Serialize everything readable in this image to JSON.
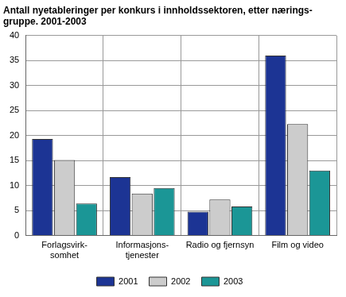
{
  "chart_data": {
    "type": "bar",
    "title": [
      "Antall nyetableringer per konkurs i innholdssektoren, etter nærings-",
      "gruppe. 2001-2003"
    ],
    "categories": [
      [
        "Forlagsvirk-",
        "somhet"
      ],
      [
        "Informasjons-",
        "tjenester"
      ],
      [
        "Radio og fjernsyn"
      ],
      [
        "Film og video"
      ]
    ],
    "series": [
      {
        "name": "2001",
        "color": "#1c3494",
        "values": [
          19.3,
          11.7,
          4.8,
          36.0
        ]
      },
      {
        "name": "2002",
        "color": "#cccccc",
        "values": [
          15.1,
          8.4,
          7.2,
          22.3
        ]
      },
      {
        "name": "2003",
        "color": "#1b9696",
        "values": [
          6.4,
          9.5,
          5.8,
          13.0
        ]
      }
    ],
    "ylim": [
      0,
      40
    ],
    "yticks": [
      0,
      5,
      10,
      15,
      20,
      25,
      30,
      35,
      40
    ],
    "grid": true,
    "legend": "bottom"
  }
}
